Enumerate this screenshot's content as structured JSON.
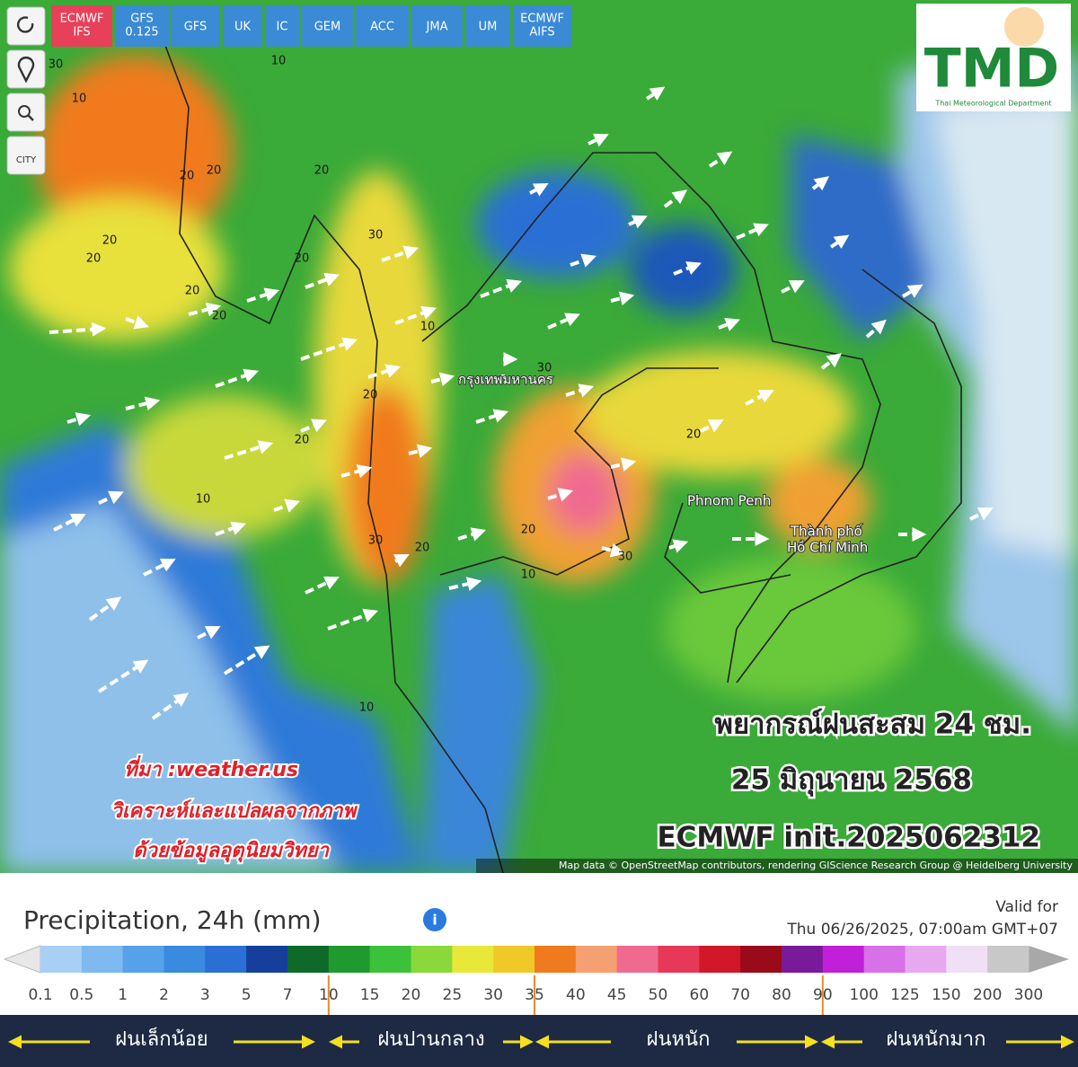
{
  "toolbar": {
    "buttons": [
      [
        "ECMWF",
        "IFS"
      ],
      [
        "GFS",
        "0.125"
      ],
      [
        "GFS"
      ],
      [
        "UK"
      ],
      [
        "IC"
      ],
      [
        "GEM"
      ],
      [
        "ACC"
      ],
      [
        "JMA"
      ],
      [
        "UM"
      ],
      [
        "ECMWF",
        "AIFS"
      ]
    ],
    "city_tool": "CITY"
  },
  "logo": {
    "title": "TMD",
    "subtitle": "Thai Meteorological Department"
  },
  "map": {
    "places": [
      "กรุงเทพมหานคร",
      "Phnom Penh",
      "Thành phố",
      "Hồ Chí Minh"
    ],
    "contour_labels": [
      "30",
      "20",
      "20",
      "20",
      "20",
      "30",
      "20",
      "10",
      "10",
      "20",
      "30",
      "20",
      "20",
      "10",
      "20",
      "30",
      "20",
      "20",
      "10",
      "20",
      "10",
      "10",
      "30",
      "20"
    ],
    "overlay": {
      "title": "พยากรณ์ฝนสะสม 24 ชม.",
      "date": "25 มิถุนายน 2568",
      "model": "ECMWF init.2025062312"
    },
    "credit": [
      "ที่มา :weather.us",
      "วิเคราะห์และแปลผลจากภาพ",
      "ด้วยข้อมูลอุตุนิยมวิทยา"
    ],
    "attribution": "Map data © OpenStreetMap contributors, rendering GIScience Research Group @ Heidelberg University"
  },
  "legend": {
    "title": "Precipitation, 24h (mm)",
    "valid_label": "Valid for",
    "valid_time": "Thu 06/26/2025, 07:00am GMT+07",
    "labels": [
      "0.1",
      "0.5",
      "1",
      "2",
      "3",
      "5",
      "7",
      "10",
      "15",
      "20",
      "25",
      "30",
      "35",
      "40",
      "45",
      "50",
      "60",
      "70",
      "80",
      "90",
      "100",
      "125",
      "150",
      "200",
      "300"
    ],
    "colors": [
      "#a8d0f5",
      "#7cbaf0",
      "#55a2ea",
      "#3a8ae0",
      "#2a70d4",
      "#163f9c",
      "#0f6a2a",
      "#1f9a2e",
      "#3cc23a",
      "#8ad83a",
      "#e8e83a",
      "#f0c828",
      "#f07a1e",
      "#f5a070",
      "#f06a90",
      "#e83858",
      "#d01828",
      "#9a0a18",
      "#7a1a9a",
      "#c020d8",
      "#d870e8",
      "#e8a8f0",
      "#f0e0f5",
      "#c8c8c8"
    ],
    "categories": [
      "ฝนเล็กน้อย",
      "ฝนปานกลาง",
      "ฝนหนัก",
      "ฝนหนักมาก"
    ]
  }
}
